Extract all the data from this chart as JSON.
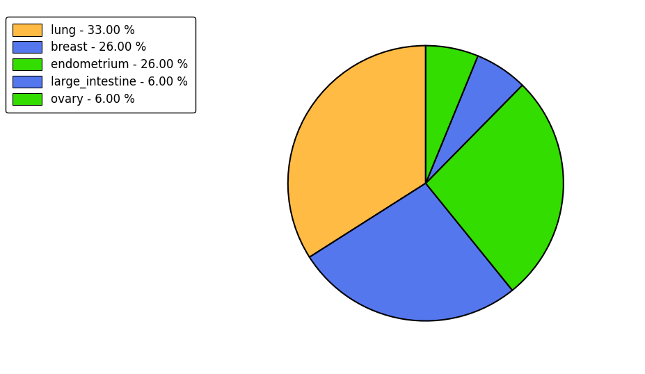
{
  "labels": [
    "lung",
    "breast",
    "endometrium",
    "large_intestine",
    "ovary"
  ],
  "values": [
    33,
    26,
    26,
    6,
    6
  ],
  "colors": [
    "#FFBB44",
    "#5577EE",
    "#33DD00",
    "#5577EE",
    "#33DD00"
  ],
  "legend_labels": [
    "lung - 33.00 %",
    "breast - 26.00 %",
    "endometrium - 26.00 %",
    "large_intestine - 6.00 %",
    "ovary - 6.00 %"
  ],
  "legend_colors": [
    "#FFBB44",
    "#5577EE",
    "#33DD00",
    "#5577EE",
    "#33DD00"
  ],
  "background_color": "#ffffff",
  "startangle": 90,
  "figsize": [
    9.27,
    5.38
  ],
  "dpi": 100
}
